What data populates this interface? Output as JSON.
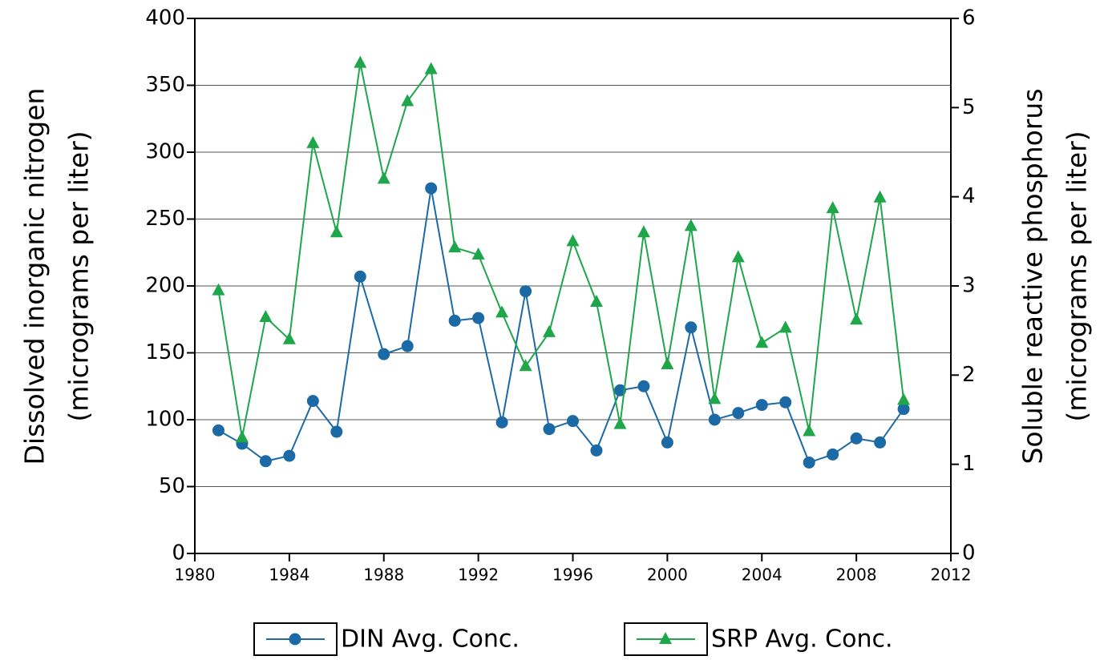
{
  "chart_data": {
    "type": "line",
    "ylabel": [
      "Dissolved inorganic nitrogen",
      "(micrograms per liter)"
    ],
    "y2label": [
      "Soluble reactive phosphorus",
      "(micrograms per liter)"
    ],
    "x": [
      1981,
      1982,
      1983,
      1984,
      1985,
      1986,
      1987,
      1988,
      1989,
      1990,
      1991,
      1992,
      1993,
      1994,
      1995,
      1996,
      1997,
      1998,
      1999,
      2000,
      2001,
      2002,
      2003,
      2004,
      2005,
      2006,
      2007,
      2008,
      2009,
      2010
    ],
    "series": [
      {
        "name": "DIN Avg. Conc.",
        "color": "#1b6aa5",
        "marker": "circle",
        "values": [
          92,
          82,
          69,
          73,
          114,
          91,
          207,
          149,
          155,
          273,
          174,
          176,
          98,
          196,
          93,
          99,
          77,
          122,
          125,
          83,
          169,
          100,
          105,
          111,
          113,
          68,
          74,
          86,
          83,
          108
        ]
      },
      {
        "name": "SRP Avg. Conc.",
        "color": "#1fa64a",
        "marker": "triangle",
        "axis": "y2",
        "values": [
          2.95,
          1.3,
          2.65,
          2.4,
          4.6,
          3.6,
          5.5,
          4.2,
          5.07,
          5.43,
          3.43,
          3.35,
          2.7,
          2.1,
          2.48,
          3.5,
          2.82,
          1.45,
          3.6,
          2.12,
          3.67,
          1.73,
          3.32,
          2.36,
          2.53,
          1.37,
          3.87,
          2.62,
          3.99,
          1.72
        ]
      }
    ],
    "xlim": [
      1980,
      2012
    ],
    "xticks": [
      1980,
      1984,
      1988,
      1992,
      1996,
      2000,
      2004,
      2008,
      2012
    ],
    "ylim": [
      0,
      400
    ],
    "yticks": [
      0,
      50,
      100,
      150,
      200,
      250,
      300,
      350,
      400
    ],
    "y2lim": [
      0,
      6
    ],
    "y2ticks": [
      0,
      1,
      2,
      3,
      4,
      5,
      6
    ],
    "grid": true
  }
}
